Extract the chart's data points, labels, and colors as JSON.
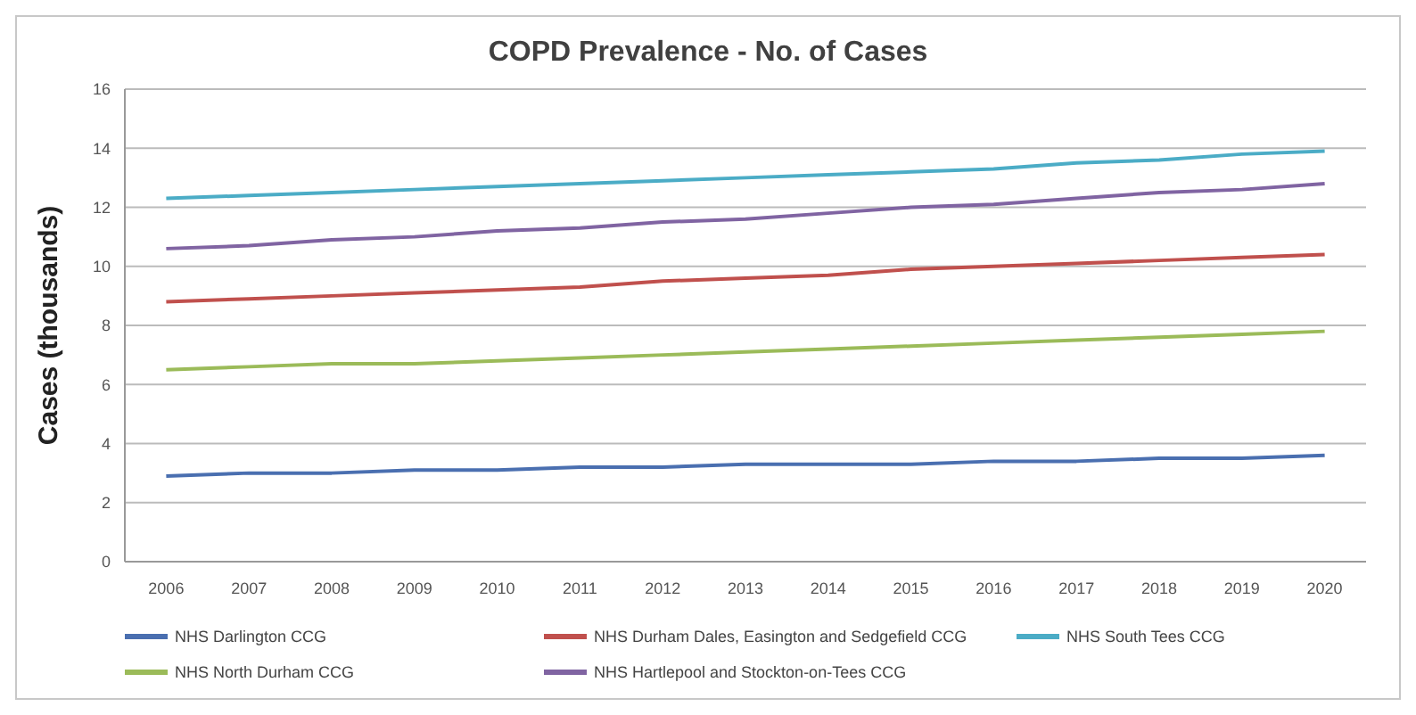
{
  "chart_data": {
    "type": "line",
    "title": "COPD Prevalence - No. of Cases",
    "ylabel": "Cases (thousands)",
    "categories": [
      "2006",
      "2007",
      "2008",
      "2009",
      "2010",
      "2011",
      "2012",
      "2013",
      "2014",
      "2015",
      "2016",
      "2017",
      "2018",
      "2019",
      "2020"
    ],
    "series": [
      {
        "name": "NHS Darlington CCG",
        "color": "#4a6fb0",
        "values": [
          2.9,
          3.0,
          3.0,
          3.1,
          3.1,
          3.2,
          3.2,
          3.3,
          3.3,
          3.3,
          3.4,
          3.4,
          3.5,
          3.5,
          3.6
        ]
      },
      {
        "name": "NHS Durham Dales, Easington and Sedgefield CCG",
        "color": "#c0504d",
        "values": [
          8.8,
          8.9,
          9.0,
          9.1,
          9.2,
          9.3,
          9.5,
          9.6,
          9.7,
          9.9,
          10.0,
          10.1,
          10.2,
          10.3,
          10.4
        ]
      },
      {
        "name": "NHS South Tees CCG",
        "color": "#4bacc6",
        "values": [
          12.3,
          12.4,
          12.5,
          12.6,
          12.7,
          12.8,
          12.9,
          13.0,
          13.1,
          13.2,
          13.3,
          13.5,
          13.6,
          13.8,
          13.9
        ]
      },
      {
        "name": "NHS North Durham CCG",
        "color": "#9bbb59",
        "values": [
          6.5,
          6.6,
          6.7,
          6.7,
          6.8,
          6.9,
          7.0,
          7.1,
          7.2,
          7.3,
          7.4,
          7.5,
          7.6,
          7.7,
          7.8
        ]
      },
      {
        "name": "NHS Hartlepool and Stockton-on-Tees CCG",
        "color": "#8064a2",
        "values": [
          10.6,
          10.7,
          10.9,
          11.0,
          11.2,
          11.3,
          11.5,
          11.6,
          11.8,
          12.0,
          12.1,
          12.3,
          12.5,
          12.6,
          12.8
        ]
      }
    ],
    "ylim": [
      0,
      16
    ],
    "yticks": [
      0,
      2,
      4,
      6,
      8,
      10,
      12,
      14,
      16
    ],
    "grid": "y",
    "legend": "bottom",
    "marker": "none",
    "line_style": "solid"
  }
}
